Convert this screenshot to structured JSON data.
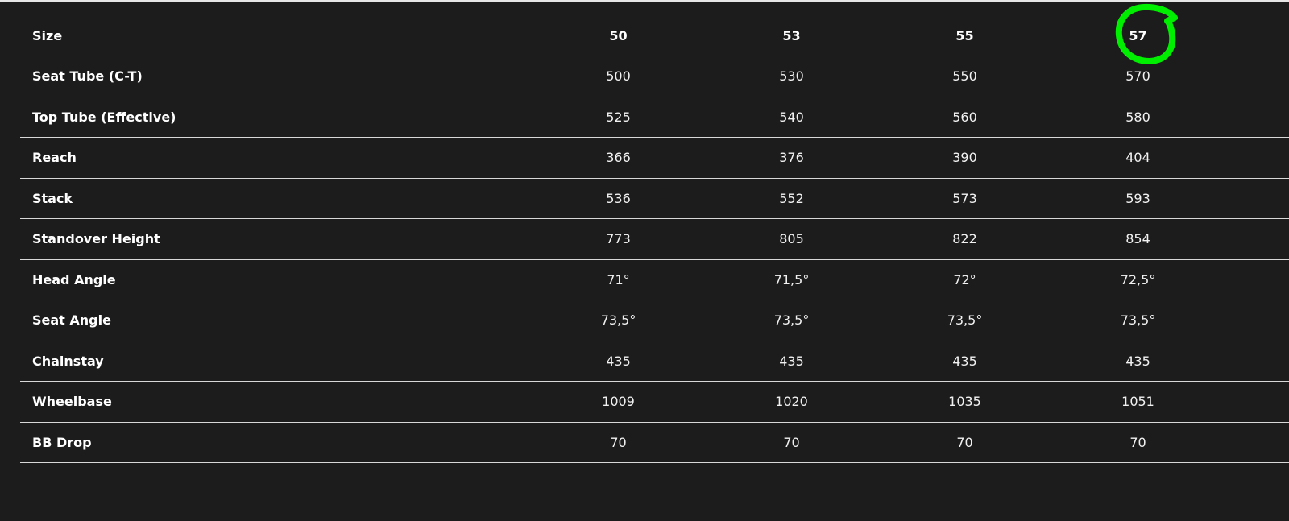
{
  "table": {
    "header": {
      "label": "Size",
      "sizes": [
        "50",
        "53",
        "55",
        "57"
      ]
    },
    "rows": [
      {
        "label": "Seat Tube (C-T)",
        "values": [
          "500",
          "530",
          "550",
          "570"
        ]
      },
      {
        "label": "Top Tube (Effective)",
        "values": [
          "525",
          "540",
          "560",
          "580"
        ]
      },
      {
        "label": "Reach",
        "values": [
          "366",
          "376",
          "390",
          "404"
        ]
      },
      {
        "label": "Stack",
        "values": [
          "536",
          "552",
          "573",
          "593"
        ]
      },
      {
        "label": "Standover Height",
        "values": [
          "773",
          "805",
          "822",
          "854"
        ]
      },
      {
        "label": "Head Angle",
        "values": [
          "71°",
          "71,5°",
          "72°",
          "72,5°"
        ]
      },
      {
        "label": "Seat Angle",
        "values": [
          "73,5°",
          "73,5°",
          "73,5°",
          "73,5°"
        ]
      },
      {
        "label": "Chainstay",
        "values": [
          "435",
          "435",
          "435",
          "435"
        ]
      },
      {
        "label": "Wheelbase",
        "values": [
          "1009",
          "1020",
          "1035",
          "1051"
        ]
      },
      {
        "label": "BB Drop",
        "values": [
          "70",
          "70",
          "70",
          "70"
        ]
      }
    ]
  },
  "annotation": {
    "type": "hand-drawn circle",
    "target": "57",
    "color": "#00ee00"
  },
  "colors": {
    "background": "#1c1c1c",
    "text": "#ffffff",
    "divider": "#d8d8d8"
  }
}
